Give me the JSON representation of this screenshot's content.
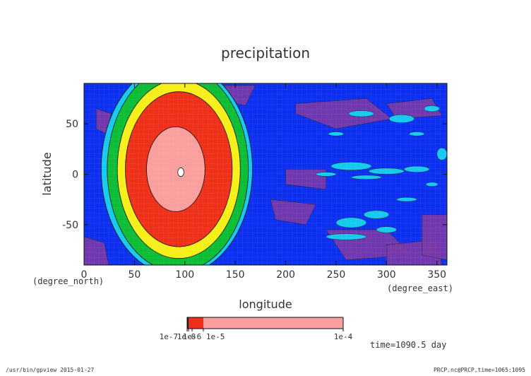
{
  "chart_data": {
    "type": "heatmap",
    "title": "precipitation",
    "xlabel": "longitude",
    "ylabel": "latitude",
    "x_unit": "(degree_east)",
    "y_unit": "(degree_north)",
    "xlim": [
      0,
      360
    ],
    "ylim": [
      -90,
      90
    ],
    "x_ticks": [
      0,
      50,
      100,
      150,
      200,
      250,
      300,
      350
    ],
    "y_ticks": [
      -50,
      0,
      50
    ],
    "rings": [
      {
        "level": 6,
        "radius_deg": 75,
        "cx": 92,
        "cy": 5,
        "color": "#16c9ee"
      },
      {
        "level": 5,
        "radius_deg": 70,
        "cx": 93,
        "cy": 5,
        "color": "#0cbd35"
      },
      {
        "level": 4,
        "radius_deg": 61,
        "cx": 94,
        "cy": 5,
        "color": "#f6ef1a"
      },
      {
        "level": 3,
        "radius_deg": 53,
        "cx": 94,
        "cy": 5,
        "color": "#ee3019"
      },
      {
        "level": 2,
        "radius_deg": 29,
        "cx": 91,
        "cy": 5,
        "color": "#fa9f9d"
      },
      {
        "level": 1,
        "radius_deg": 3,
        "cx": 96,
        "cy": 2,
        "color": "#ffffff"
      }
    ],
    "background_color": "#0c2ff0",
    "low_color": "#7a3aa8",
    "colorbar": {
      "label_left": "1e-8",
      "label_left_overlap": "1e-7  1e-6  1e-5",
      "label_right": "1e-4",
      "colors": [
        "#1a1a1a",
        "#ee3019",
        "#fa9f9d"
      ]
    },
    "annotation": "time=1090.5 day"
  },
  "footer": {
    "left": "/usr/bin/gpview  2015-01-27",
    "right": "PRCP.nc@PRCP,time=1065:1095"
  }
}
